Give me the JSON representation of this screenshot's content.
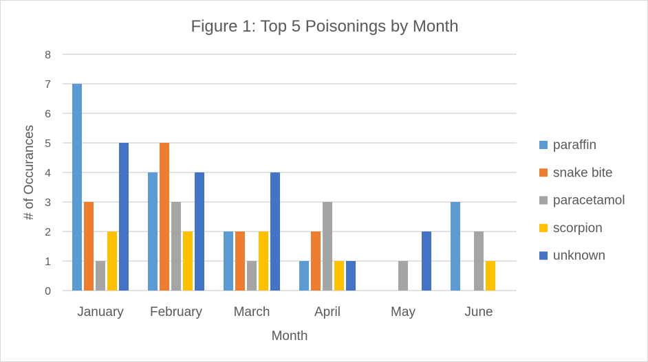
{
  "chart_data": {
    "type": "bar",
    "title": "Figure 1: Top 5 Poisonings by Month",
    "xlabel": "Month",
    "ylabel": "# of Occurances",
    "ylim": [
      0,
      8
    ],
    "yticks": [
      0,
      1,
      2,
      3,
      4,
      5,
      6,
      7,
      8
    ],
    "grid": true,
    "legend_position": "right",
    "categories": [
      "January",
      "February",
      "March",
      "April",
      "May",
      "June"
    ],
    "series": [
      {
        "name": "paraffin",
        "color": "#5b9bd5",
        "values": [
          7,
          4,
          2,
          1,
          0,
          3
        ]
      },
      {
        "name": "snake bite",
        "color": "#ed7d31",
        "values": [
          3,
          5,
          2,
          2,
          0,
          0
        ]
      },
      {
        "name": "paracetamol",
        "color": "#a5a5a5",
        "values": [
          1,
          3,
          1,
          3,
          1,
          2
        ]
      },
      {
        "name": "scorpion",
        "color": "#ffc000",
        "values": [
          2,
          2,
          2,
          1,
          0,
          1
        ]
      },
      {
        "name": "unknown",
        "color": "#4472c4",
        "values": [
          5,
          4,
          4,
          1,
          2,
          0
        ]
      }
    ]
  }
}
